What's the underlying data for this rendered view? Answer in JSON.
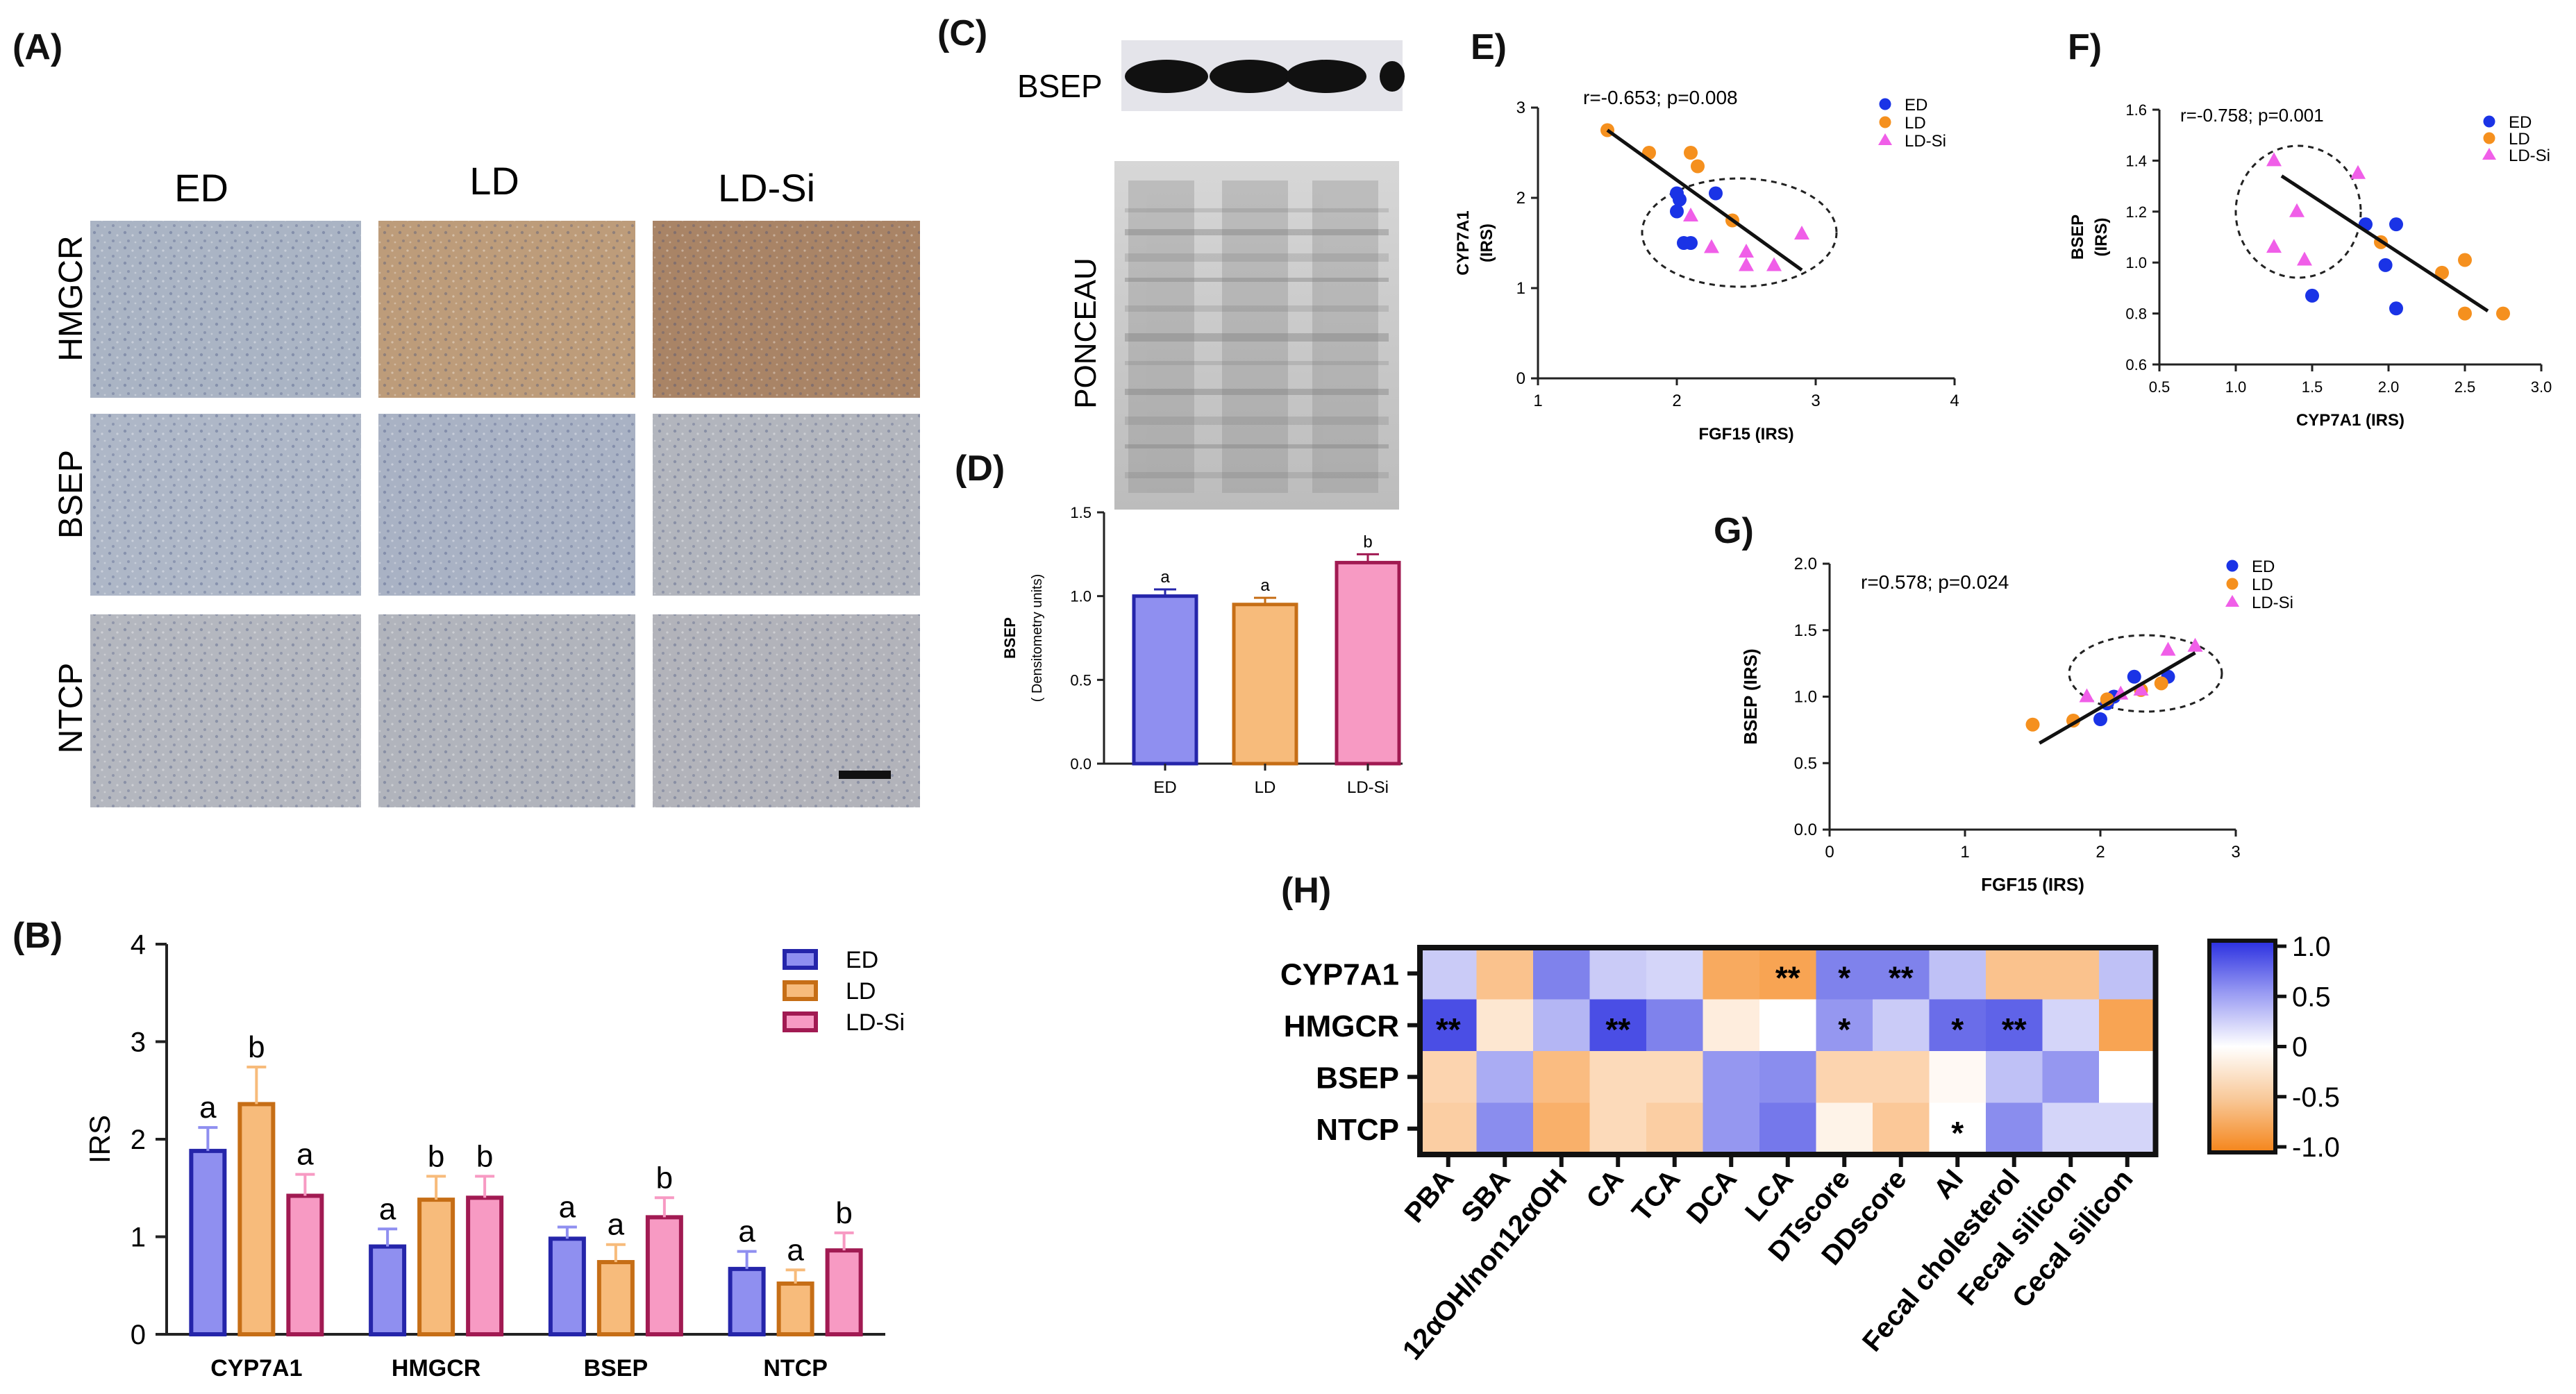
{
  "panels": {
    "A": "(A)",
    "B": "(B)",
    "C": "(C)",
    "D": "(D)",
    "E": "E)",
    "F": "F)",
    "G": "G)",
    "H": "(H)"
  },
  "histology": {
    "columns": [
      "ED",
      "LD",
      "LD-Si"
    ],
    "rows": [
      "HMGCR",
      "BSEP",
      "NTCP"
    ],
    "tile_colors": [
      [
        "#aab4c4",
        "#bd9c7a",
        "#a98466"
      ],
      [
        "#aeb7c7",
        "#a9b2c4",
        "#b2b5bd"
      ],
      [
        "#b4b7bf",
        "#b1b4bc",
        "#b2b3ba"
      ]
    ]
  },
  "blot": {
    "band_label": "BSEP",
    "membrane_label": "PONCEAU"
  },
  "chart_data": [
    {
      "id": "B",
      "type": "bar",
      "categories": [
        "CYP7A1",
        "HMGCR",
        "BSEP",
        "NTCP"
      ],
      "series": [
        {
          "name": "ED",
          "values": [
            1.88,
            0.9,
            0.98,
            0.67
          ],
          "errors": [
            0.24,
            0.18,
            0.12,
            0.18
          ],
          "letters": [
            "a",
            "a",
            "a",
            "a"
          ],
          "fill": "#8f8ff0",
          "stroke": "#2525aa"
        },
        {
          "name": "LD",
          "values": [
            2.36,
            1.38,
            0.74,
            0.52
          ],
          "errors": [
            0.38,
            0.24,
            0.18,
            0.14
          ],
          "letters": [
            "b",
            "b",
            "a",
            "a"
          ],
          "fill": "#f7bb7b",
          "stroke": "#c66e16"
        },
        {
          "name": "LD-Si",
          "values": [
            1.42,
            1.4,
            1.2,
            0.86
          ],
          "errors": [
            0.22,
            0.22,
            0.2,
            0.18
          ],
          "letters": [
            "a",
            "b",
            "b",
            "b"
          ],
          "fill": "#f79ac3",
          "stroke": "#a11a52"
        }
      ],
      "ylabel": "IRS",
      "ylim": [
        0,
        4
      ],
      "yticks": [
        0,
        1,
        2,
        3,
        4
      ],
      "legend": "top-right"
    },
    {
      "id": "D",
      "type": "bar",
      "categories": [
        "ED",
        "LD",
        "LD-Si"
      ],
      "values": [
        1.0,
        0.95,
        1.2
      ],
      "errors": [
        0.04,
        0.04,
        0.05
      ],
      "letters": [
        "a",
        "a",
        "b"
      ],
      "fills": [
        "#8f8ff0",
        "#f7bb7b",
        "#f79ac3"
      ],
      "strokes": [
        "#2525aa",
        "#c66e16",
        "#a11a52"
      ],
      "ylabel": "BSEP",
      "ylabel2": "( Densitometry units)",
      "ylim": [
        0,
        1.5
      ],
      "yticks": [
        "0.0",
        "0.5",
        "1.0",
        "1.5"
      ]
    },
    {
      "id": "E",
      "type": "scatter",
      "annotation": "r=-0.653; p=0.008",
      "xlabel": "FGF15 (IRS)",
      "ylabel": "CYP7A1",
      "ylabel2": "(IRS)",
      "xlim": [
        1,
        4
      ],
      "ylim": [
        0,
        3
      ],
      "xticks": [
        1,
        2,
        3,
        4
      ],
      "yticks": [
        0,
        1,
        2,
        3
      ],
      "series": [
        {
          "name": "ED",
          "marker": "circle",
          "color": "#1a33e6",
          "points": [
            [
              2.0,
              2.05
            ],
            [
              2.02,
              1.98
            ],
            [
              2.0,
              1.85
            ],
            [
              2.05,
              1.5
            ],
            [
              2.1,
              1.5
            ],
            [
              2.28,
              2.05
            ]
          ]
        },
        {
          "name": "LD",
          "marker": "circle",
          "color": "#f5901e",
          "points": [
            [
              1.5,
              2.75
            ],
            [
              1.8,
              2.5
            ],
            [
              2.1,
              2.5
            ],
            [
              2.15,
              2.35
            ],
            [
              2.4,
              1.75
            ]
          ]
        },
        {
          "name": "LD-Si",
          "marker": "triangle",
          "color": "#f05ee8",
          "points": [
            [
              2.1,
              1.8
            ],
            [
              2.25,
              1.45
            ],
            [
              2.5,
              1.4
            ],
            [
              2.5,
              1.25
            ],
            [
              2.7,
              1.25
            ],
            [
              2.9,
              1.6
            ]
          ]
        }
      ],
      "fit": [
        [
          1.5,
          2.75
        ],
        [
          2.9,
          1.2
        ]
      ]
    },
    {
      "id": "F",
      "type": "scatter",
      "annotation": "r=-0.758; p=0.001",
      "xlabel": "CYP7A1 (IRS)",
      "ylabel": "BSEP",
      "ylabel2": "(IRS)",
      "xlim": [
        0.5,
        3.0
      ],
      "ylim": [
        0.6,
        1.6
      ],
      "xticks": [
        "0.5",
        "1.0",
        "1.5",
        "2.0",
        "2.5",
        "3.0"
      ],
      "yticks": [
        "0.6",
        "0.8",
        "1.0",
        "1.2",
        "1.4",
        "1.6"
      ],
      "series": [
        {
          "name": "ED",
          "marker": "circle",
          "color": "#1a33e6",
          "points": [
            [
              1.5,
              0.87
            ],
            [
              1.85,
              1.15
            ],
            [
              1.98,
              0.99
            ],
            [
              2.05,
              0.82
            ],
            [
              2.05,
              1.15
            ]
          ]
        },
        {
          "name": "LD",
          "marker": "circle",
          "color": "#f5901e",
          "points": [
            [
              1.95,
              1.08
            ],
            [
              2.35,
              0.96
            ],
            [
              2.5,
              0.8
            ],
            [
              2.5,
              1.01
            ],
            [
              2.75,
              0.8
            ]
          ]
        },
        {
          "name": "LD-Si",
          "marker": "triangle",
          "color": "#f05ee8",
          "points": [
            [
              1.25,
              1.4
            ],
            [
              1.25,
              1.06
            ],
            [
              1.4,
              1.2
            ],
            [
              1.45,
              1.01
            ],
            [
              1.8,
              1.35
            ]
          ]
        }
      ],
      "fit": [
        [
          1.3,
          1.34
        ],
        [
          2.65,
          0.81
        ]
      ]
    },
    {
      "id": "G",
      "type": "scatter",
      "annotation": "r=0.578; p=0.024",
      "xlabel": "FGF15 (IRS)",
      "ylabel": "BSEP (IRS)",
      "xlim": [
        0,
        3
      ],
      "ylim": [
        0,
        2
      ],
      "xticks": [
        0,
        1,
        2,
        3
      ],
      "yticks": [
        "0.0",
        "0.5",
        "1.0",
        "1.5",
        "2.0"
      ],
      "series": [
        {
          "name": "ED",
          "marker": "circle",
          "color": "#1a33e6",
          "points": [
            [
              2.0,
              0.83
            ],
            [
              2.05,
              0.95
            ],
            [
              2.1,
              1.0
            ],
            [
              2.25,
              1.15
            ],
            [
              2.5,
              1.15
            ]
          ]
        },
        {
          "name": "LD",
          "marker": "circle",
          "color": "#f5901e",
          "points": [
            [
              1.5,
              0.79
            ],
            [
              1.8,
              0.82
            ],
            [
              2.05,
              0.98
            ],
            [
              2.3,
              1.05
            ],
            [
              2.45,
              1.1
            ]
          ]
        },
        {
          "name": "LD-Si",
          "marker": "triangle",
          "color": "#f05ee8",
          "points": [
            [
              1.9,
              1.0
            ],
            [
              2.15,
              1.02
            ],
            [
              2.3,
              1.05
            ],
            [
              2.5,
              1.35
            ],
            [
              2.7,
              1.38
            ]
          ]
        }
      ],
      "fit": [
        [
          1.55,
          0.65
        ],
        [
          2.7,
          1.33
        ]
      ]
    },
    {
      "id": "H",
      "type": "heatmap",
      "rows": [
        "CYP7A1",
        "HMGCR",
        "BSEP",
        "NTCP"
      ],
      "cols": [
        "PBA",
        "SBA",
        "12αOH/non12αOH",
        "CA",
        "TCA",
        "DCA",
        "LCA",
        "DTscore",
        "DDscore",
        "AI",
        "Fecal cholesterol",
        "Fecal silicon",
        "Cecal silicon"
      ],
      "values": [
        [
          0.25,
          -0.5,
          0.6,
          0.25,
          0.2,
          -0.7,
          -0.75,
          0.6,
          0.6,
          0.3,
          -0.5,
          -0.5,
          0.3
        ],
        [
          0.85,
          -0.2,
          0.35,
          0.85,
          0.6,
          -0.15,
          0.0,
          0.5,
          0.25,
          0.7,
          0.75,
          0.2,
          -0.75
        ],
        [
          -0.35,
          0.4,
          -0.55,
          -0.3,
          -0.3,
          0.5,
          0.55,
          -0.35,
          -0.35,
          -0.05,
          0.3,
          0.5,
          0.0
        ],
        [
          -0.4,
          0.55,
          -0.65,
          -0.3,
          -0.4,
          0.5,
          0.65,
          -0.1,
          -0.45,
          0.0,
          0.55,
          0.2,
          0.2
        ]
      ],
      "marks": [
        [
          "",
          "",
          "",
          "",
          "",
          "",
          "**",
          "*",
          "**",
          "",
          "",
          "",
          ""
        ],
        [
          "**",
          "",
          "",
          "**",
          "",
          "",
          "",
          "*",
          "",
          "*",
          "**",
          "",
          ""
        ],
        [
          "",
          "",
          "",
          "",
          "",
          "",
          "",
          "",
          "",
          "",
          "",
          "",
          ""
        ],
        [
          "",
          "",
          "",
          "",
          "",
          "",
          "",
          "",
          "",
          "*",
          "",
          "",
          ""
        ]
      ],
      "colorbar_ticks": [
        "1.0",
        "0.5",
        "0",
        "-0.5",
        "-1.0"
      ]
    }
  ]
}
